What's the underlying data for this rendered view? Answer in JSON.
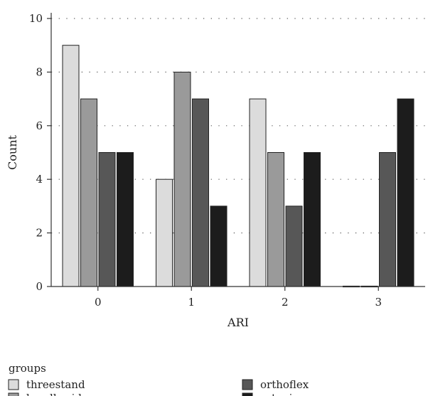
{
  "chart_data": {
    "type": "bar",
    "title": "",
    "xlabel": "ARI",
    "ylabel": "Count",
    "categories": [
      "0",
      "1",
      "2",
      "3"
    ],
    "ylim": [
      0,
      10
    ],
    "yticks": [
      0,
      2,
      4,
      6,
      8,
      10
    ],
    "grid": "dotted horizontal",
    "legend_title": "groups",
    "legend_position": "bottom",
    "series": [
      {
        "name": "threestand",
        "color": "#dcdcdc",
        "values": [
          9,
          4,
          7,
          0
        ]
      },
      {
        "name": "bondbraid",
        "color": "#9a9a9a",
        "values": [
          7,
          8,
          5,
          0
        ]
      },
      {
        "name": "orthoflex",
        "color": "#575757",
        "values": [
          5,
          7,
          3,
          5
        ]
      },
      {
        "name": "retanium",
        "color": "#1c1c1c",
        "values": [
          5,
          3,
          5,
          7
        ]
      }
    ]
  }
}
